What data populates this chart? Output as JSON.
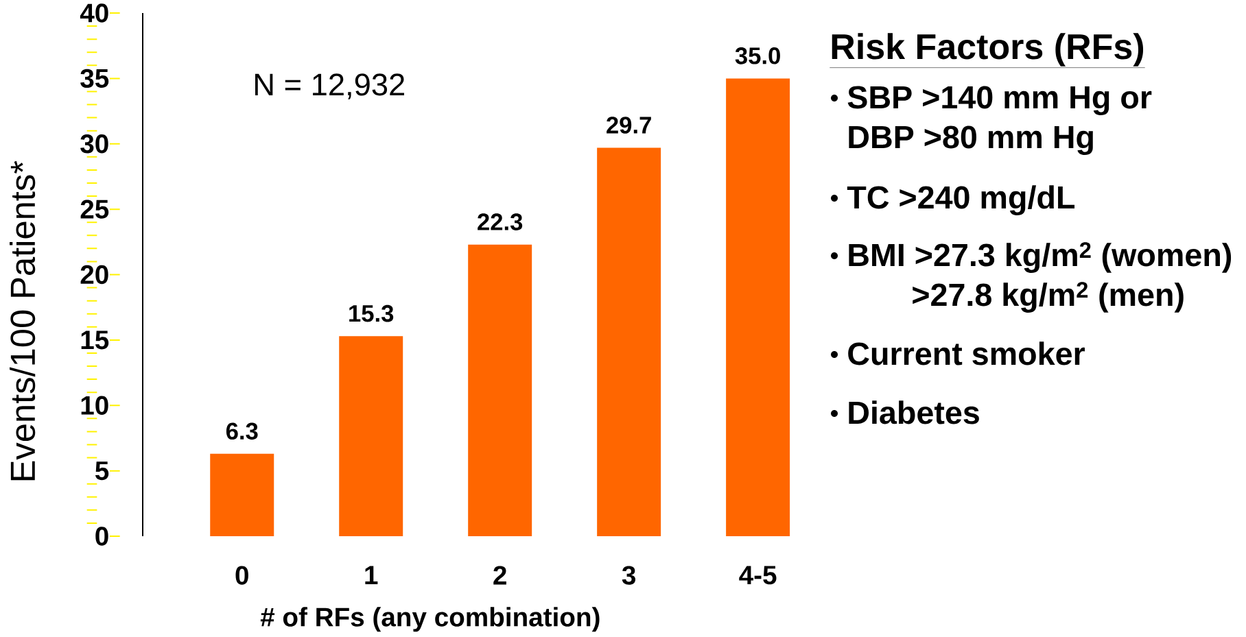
{
  "chart_data": {
    "type": "bar",
    "xlabel": "# of RFs (any combination)",
    "ylabel": "Events/100 Patients*",
    "categories": [
      "0",
      "1",
      "2",
      "3",
      "4-5"
    ],
    "values": [
      6.3,
      15.3,
      22.3,
      29.7,
      35.0
    ],
    "value_labels": [
      "6.3",
      "15.3",
      "22.3",
      "29.7",
      "35.0"
    ],
    "color": "#ff6600",
    "ylim": [
      0,
      40
    ],
    "yticks": [
      0,
      5,
      10,
      15,
      20,
      25,
      30,
      35,
      40
    ],
    "annotations": [
      "N = 12,932",
      "Risk Factors (RFs)",
      "SBP >140 mm Hg or",
      "DBP >80 mm Hg",
      "TC >240 mg/dL",
      "BMI >27.3 kg/m$^{2}$ (women)",
      ">27.8 kg/m$^{2}$ (men)",
      "Current smoker",
      "Diabetes"
    ]
  }
}
